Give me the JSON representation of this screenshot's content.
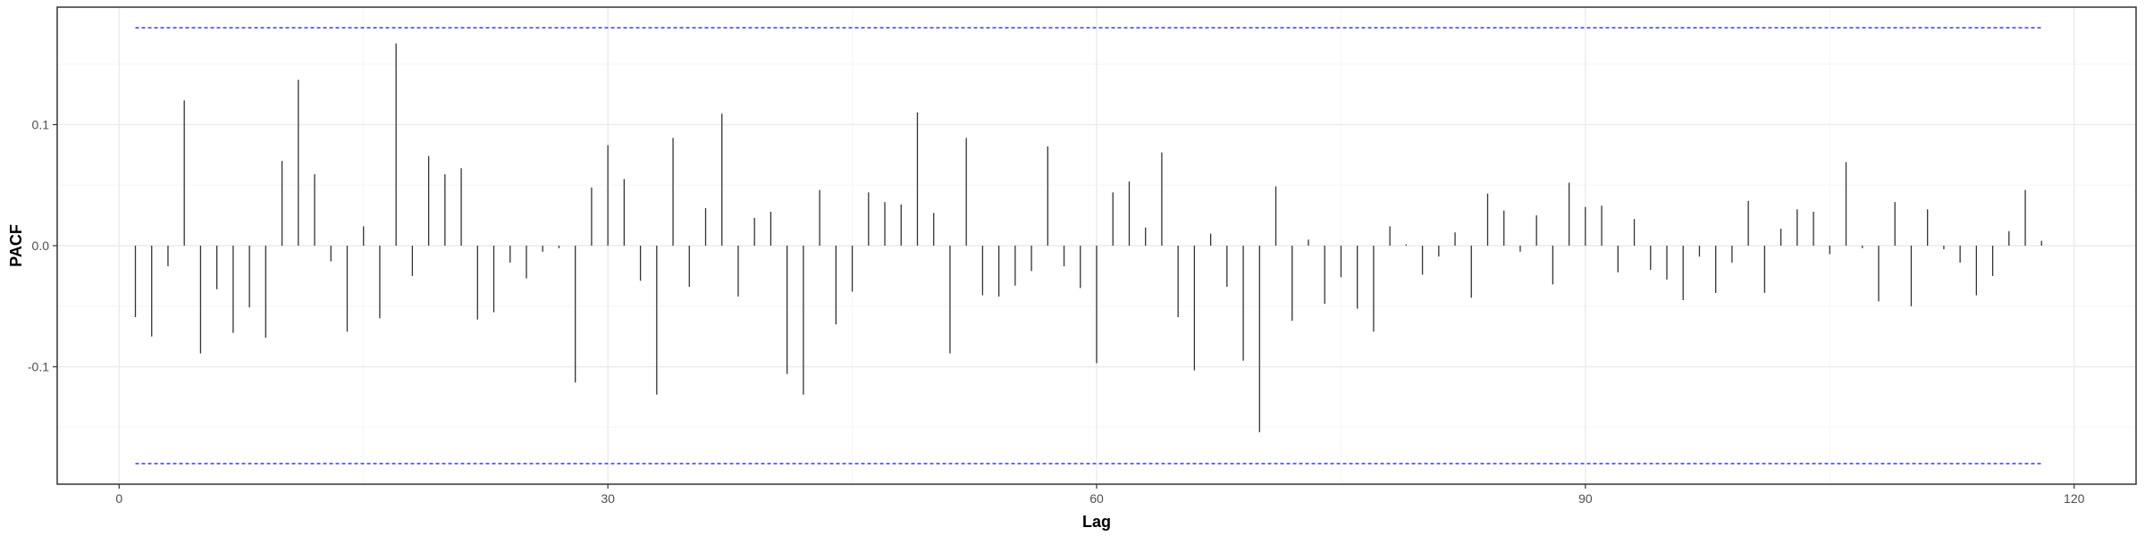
{
  "chart_data": {
    "type": "bar",
    "xlabel": "Lag",
    "ylabel": "PACF",
    "xlim": [
      -3.8,
      123.8
    ],
    "ylim": [
      -0.197,
      0.197
    ],
    "x_ticks": [
      0,
      30,
      60,
      90,
      120
    ],
    "x_tick_labels": [
      "0",
      "30",
      "60",
      "90",
      "120"
    ],
    "y_ticks": [
      -0.1,
      0.0,
      0.1
    ],
    "y_tick_labels": [
      "-0.1",
      "0.0",
      "0.1"
    ],
    "grid": true,
    "legend": "none",
    "confidence_band": 0.18,
    "lags": [
      1,
      2,
      3,
      4,
      5,
      6,
      7,
      8,
      9,
      10,
      11,
      12,
      13,
      14,
      15,
      16,
      17,
      18,
      19,
      20,
      21,
      22,
      23,
      24,
      25,
      26,
      27,
      28,
      29,
      30,
      31,
      32,
      33,
      34,
      35,
      36,
      37,
      38,
      39,
      40,
      41,
      42,
      43,
      44,
      45,
      46,
      47,
      48,
      49,
      50,
      51,
      52,
      53,
      54,
      55,
      56,
      57,
      58,
      59,
      60,
      61,
      62,
      63,
      64,
      65,
      66,
      67,
      68,
      69,
      70,
      71,
      72,
      73,
      74,
      75,
      76,
      77,
      78,
      79,
      80,
      81,
      82,
      83,
      84,
      85,
      86,
      87,
      88,
      89,
      90,
      91,
      92,
      93,
      94,
      95,
      96,
      97,
      98,
      99,
      100,
      101,
      102,
      103,
      104,
      105,
      106,
      107,
      108,
      109,
      110,
      111,
      112,
      113,
      114,
      115,
      116,
      117,
      118
    ],
    "values": [
      -0.059,
      -0.075,
      -0.017,
      0.12,
      -0.089,
      -0.036,
      -0.072,
      -0.051,
      -0.076,
      0.07,
      0.137,
      0.059,
      -0.013,
      -0.071,
      0.016,
      -0.06,
      0.167,
      -0.025,
      0.074,
      0.059,
      0.064,
      -0.061,
      -0.055,
      -0.014,
      -0.027,
      -0.005,
      -0.002,
      -0.113,
      0.048,
      0.083,
      0.055,
      -0.029,
      -0.123,
      0.089,
      -0.034,
      0.031,
      0.109,
      -0.042,
      0.023,
      0.028,
      -0.106,
      -0.123,
      0.046,
      -0.065,
      -0.038,
      0.044,
      0.036,
      0.034,
      0.11,
      0.027,
      -0.089,
      0.089,
      -0.041,
      -0.042,
      -0.033,
      -0.021,
      0.082,
      -0.017,
      -0.035,
      -0.097,
      0.044,
      0.053,
      0.015,
      0.077,
      -0.059,
      -0.103,
      0.01,
      -0.034,
      -0.095,
      -0.154,
      0.049,
      -0.062,
      0.005,
      -0.048,
      -0.026,
      -0.052,
      -0.071,
      0.016,
      0.001,
      -0.024,
      -0.009,
      0.011,
      -0.043,
      0.043,
      0.029,
      -0.005,
      0.025,
      -0.032,
      0.052,
      0.032,
      0.033,
      -0.022,
      0.022,
      -0.02,
      -0.028,
      -0.045,
      -0.009,
      -0.039,
      -0.014,
      0.037,
      -0.039,
      0.014,
      0.03,
      0.028,
      -0.007,
      0.069,
      -0.002,
      -0.046,
      0.036,
      -0.05,
      0.03,
      -0.003,
      -0.014,
      -0.041,
      -0.025,
      0.012,
      0.046,
      0.004
    ],
    "colors": {
      "bars": "#333333",
      "confidence_lines": "#4a4ae0",
      "panel_border": "#333333",
      "grid_major": "#ebebeb",
      "grid_minor": "#f5f5f5"
    }
  }
}
